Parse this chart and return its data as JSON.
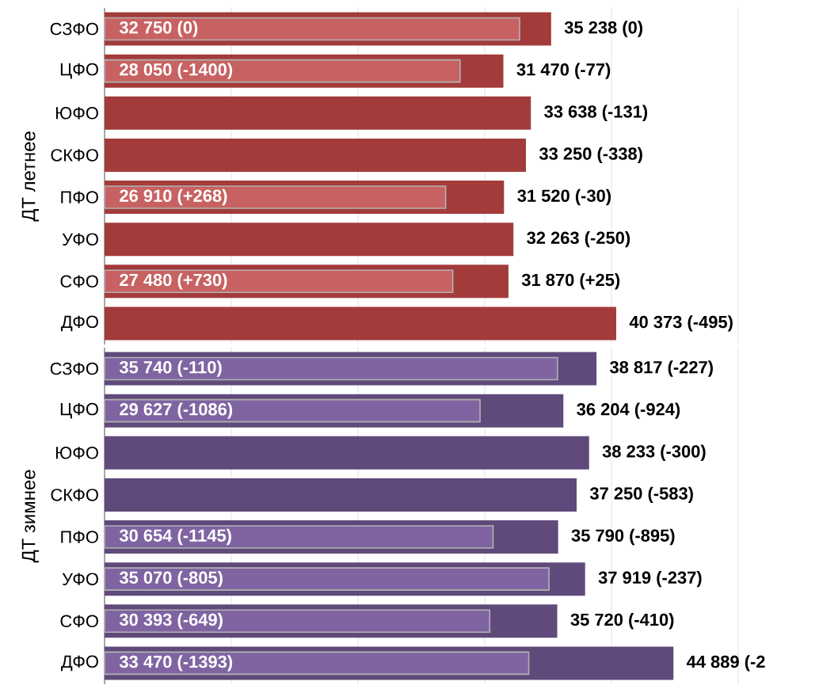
{
  "chart_data": [
    {
      "type": "bar",
      "orientation": "horizontal",
      "ylabel": "ДТ летнее",
      "categories": [
        "СЗФО",
        "ЦФО",
        "ЮФО",
        "СКФО",
        "ПФО",
        "УФО",
        "СФО",
        "ДФО"
      ],
      "series": [
        {
          "color": "#a33b3b",
          "values": [
            35238,
            31470,
            33638,
            33250,
            31520,
            32263,
            31870,
            40373
          ],
          "value_labels": [
            "35 238 (0)",
            "31 470 (-77)",
            "33 638 (-131)",
            "33 250 (-338)",
            "31 520 (-30)",
            "32 263 (-250)",
            "31 870 (+25)",
            "40 373 (-495)"
          ]
        },
        {
          "color": "#c86262",
          "values": [
            32750,
            28050,
            null,
            null,
            26910,
            null,
            27480,
            null
          ],
          "value_labels": [
            "32 750 (0)",
            "28 050 (-1400)",
            null,
            null,
            "26 910 (+268)",
            null,
            "27 480 (+730)",
            null
          ]
        }
      ],
      "xlim": [
        0,
        50000
      ],
      "xticks": [
        {
          "value": 10000,
          "label": null
        },
        {
          "value": 20000,
          "label": null
        },
        {
          "value": 30000,
          "label": null
        },
        {
          "value": 40000,
          "label": null
        },
        {
          "value": 50000,
          "label": null
        }
      ],
      "grid": "x",
      "tick_labels": "y"
    },
    {
      "type": "bar",
      "orientation": "horizontal",
      "ylabel": "ДТ зимнее",
      "categories": [
        "СЗФО",
        "ЦФО",
        "ЮФО",
        "СКФО",
        "ПФО",
        "УФО",
        "СФО",
        "ДФО"
      ],
      "series": [
        {
          "color": "#5f4a7b",
          "values": [
            38817,
            36204,
            38233,
            37250,
            35790,
            37919,
            35720,
            44889
          ],
          "value_labels": [
            "38 817 (-227)",
            "36 204 (-924)",
            "38 233 (-300)",
            "37 250 (-583)",
            "35 790 (-895)",
            "37 919 (-237)",
            "35 720 (-410)",
            "44 889 (-2"
          ]
        },
        {
          "color": "#8064a2",
          "values": [
            35740,
            29627,
            null,
            null,
            30654,
            35070,
            30393,
            33470
          ],
          "value_labels": [
            "35 740 (-110)",
            "29 627 (-1086)",
            null,
            null,
            "30 654 (-1145)",
            "35 070 (-805)",
            "30 393 (-649)",
            "33 470 (-1393)"
          ]
        }
      ],
      "xlim": [
        0,
        50000
      ],
      "xticks": [
        {
          "value": 10000,
          "label": null
        },
        {
          "value": 20000,
          "label": null
        },
        {
          "value": 30000,
          "label": null
        },
        {
          "value": 40000,
          "label": null
        },
        {
          "value": 50000,
          "label": null
        }
      ],
      "grid": "x",
      "tick_labels": "y"
    }
  ]
}
